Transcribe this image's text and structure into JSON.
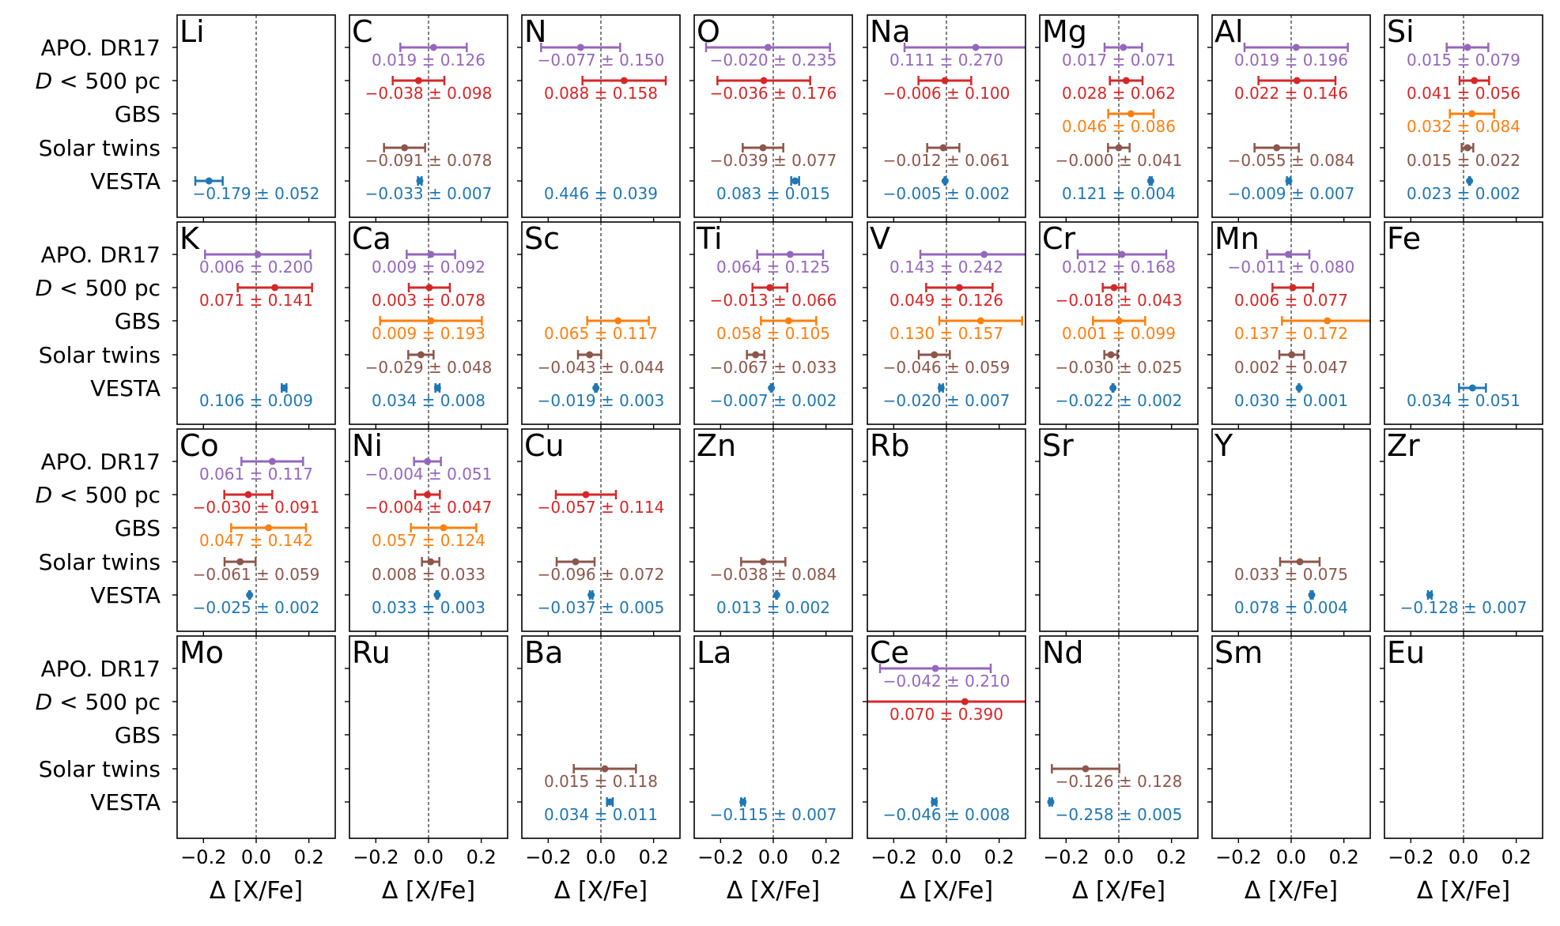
{
  "chart_data": {
    "type": "errorbar",
    "xlabel": "Δ [X/Fe]",
    "xlim": [
      -0.3,
      0.3
    ],
    "xticks": [
      -0.2,
      0.0,
      0.2
    ],
    "xtick_labels": [
      "−0.2",
      "0.0",
      "0.2"
    ],
    "grid": false,
    "zero_reference_line": true,
    "rows": [
      {
        "key": "apo",
        "label": "APO. DR17",
        "color": "#9467bd"
      },
      {
        "key": "d500",
        "label": "D < 500 pc",
        "label_main": "D",
        "label_rest": " < 500 pc",
        "color": "#d62728"
      },
      {
        "key": "gbs",
        "label": "GBS",
        "color": "#ff7f0e"
      },
      {
        "key": "twins",
        "label": "Solar twins",
        "color": "#8c564b"
      },
      {
        "key": "vesta",
        "label": "VESTA",
        "color": "#1f77b4"
      }
    ],
    "panels": [
      {
        "element": "Li",
        "entries": [
          {
            "row": "vesta",
            "value": -0.179,
            "error": 0.052,
            "label": "−0.179 ± 0.052"
          }
        ]
      },
      {
        "element": "C",
        "entries": [
          {
            "row": "apo",
            "value": 0.019,
            "error": 0.126,
            "label": "0.019 ± 0.126"
          },
          {
            "row": "d500",
            "value": -0.038,
            "error": 0.098,
            "label": "−0.038 ± 0.098"
          },
          {
            "row": "twins",
            "value": -0.091,
            "error": 0.078,
            "label": "−0.091 ± 0.078"
          },
          {
            "row": "vesta",
            "value": -0.033,
            "error": 0.007,
            "label": "−0.033 ± 0.007"
          }
        ]
      },
      {
        "element": "N",
        "entries": [
          {
            "row": "apo",
            "value": -0.077,
            "error": 0.15,
            "label": "−0.077 ± 0.150"
          },
          {
            "row": "d500",
            "value": 0.088,
            "error": 0.158,
            "label": "0.088 ± 0.158"
          },
          {
            "row": "vesta",
            "value": 0.446,
            "error": 0.039,
            "label": "0.446 ± 0.039"
          }
        ]
      },
      {
        "element": "O",
        "entries": [
          {
            "row": "apo",
            "value": -0.02,
            "error": 0.235,
            "label": "−0.020 ± 0.235"
          },
          {
            "row": "d500",
            "value": -0.036,
            "error": 0.176,
            "label": "−0.036 ± 0.176"
          },
          {
            "row": "twins",
            "value": -0.039,
            "error": 0.077,
            "label": "−0.039 ± 0.077"
          },
          {
            "row": "vesta",
            "value": 0.083,
            "error": 0.015,
            "label": "0.083 ± 0.015"
          }
        ]
      },
      {
        "element": "Na",
        "entries": [
          {
            "row": "apo",
            "value": 0.111,
            "error": 0.27,
            "label": "0.111 ± 0.270"
          },
          {
            "row": "d500",
            "value": -0.006,
            "error": 0.1,
            "label": "−0.006 ± 0.100"
          },
          {
            "row": "twins",
            "value": -0.012,
            "error": 0.061,
            "label": "−0.012 ± 0.061"
          },
          {
            "row": "vesta",
            "value": -0.005,
            "error": 0.002,
            "label": "−0.005 ± 0.002"
          }
        ]
      },
      {
        "element": "Mg",
        "entries": [
          {
            "row": "apo",
            "value": 0.017,
            "error": 0.071,
            "label": "0.017 ± 0.071"
          },
          {
            "row": "d500",
            "value": 0.028,
            "error": 0.062,
            "label": "0.028 ± 0.062"
          },
          {
            "row": "gbs",
            "value": 0.046,
            "error": 0.086,
            "label": "0.046 ± 0.086"
          },
          {
            "row": "twins",
            "value": -0.0,
            "error": 0.041,
            "label": "−0.000 ± 0.041"
          },
          {
            "row": "vesta",
            "value": 0.121,
            "error": 0.004,
            "label": "0.121 ± 0.004"
          }
        ]
      },
      {
        "element": "Al",
        "entries": [
          {
            "row": "apo",
            "value": 0.019,
            "error": 0.196,
            "label": "0.019 ± 0.196"
          },
          {
            "row": "d500",
            "value": 0.022,
            "error": 0.146,
            "label": "0.022 ± 0.146"
          },
          {
            "row": "twins",
            "value": -0.055,
            "error": 0.084,
            "label": "−0.055 ± 0.084"
          },
          {
            "row": "vesta",
            "value": -0.009,
            "error": 0.007,
            "label": "−0.009 ± 0.007"
          }
        ]
      },
      {
        "element": "Si",
        "entries": [
          {
            "row": "apo",
            "value": 0.015,
            "error": 0.079,
            "label": "0.015 ± 0.079"
          },
          {
            "row": "d500",
            "value": 0.041,
            "error": 0.056,
            "label": "0.041 ± 0.056"
          },
          {
            "row": "gbs",
            "value": 0.032,
            "error": 0.084,
            "label": "0.032 ± 0.084"
          },
          {
            "row": "twins",
            "value": 0.015,
            "error": 0.022,
            "label": "0.015 ± 0.022"
          },
          {
            "row": "vesta",
            "value": 0.023,
            "error": 0.002,
            "label": "0.023 ± 0.002"
          }
        ]
      },
      {
        "element": "K",
        "entries": [
          {
            "row": "apo",
            "value": 0.006,
            "error": 0.2,
            "label": "0.006 ± 0.200"
          },
          {
            "row": "d500",
            "value": 0.071,
            "error": 0.141,
            "label": "0.071 ± 0.141"
          },
          {
            "row": "vesta",
            "value": 0.106,
            "error": 0.009,
            "label": "0.106 ± 0.009"
          }
        ]
      },
      {
        "element": "Ca",
        "entries": [
          {
            "row": "apo",
            "value": 0.009,
            "error": 0.092,
            "label": "0.009 ± 0.092"
          },
          {
            "row": "d500",
            "value": 0.003,
            "error": 0.078,
            "label": "0.003 ± 0.078"
          },
          {
            "row": "gbs",
            "value": 0.009,
            "error": 0.193,
            "label": "0.009 ± 0.193"
          },
          {
            "row": "twins",
            "value": -0.029,
            "error": 0.048,
            "label": "−0.029 ± 0.048"
          },
          {
            "row": "vesta",
            "value": 0.034,
            "error": 0.008,
            "label": "0.034 ± 0.008"
          }
        ]
      },
      {
        "element": "Sc",
        "entries": [
          {
            "row": "gbs",
            "value": 0.065,
            "error": 0.117,
            "label": "0.065 ± 0.117"
          },
          {
            "row": "twins",
            "value": -0.043,
            "error": 0.044,
            "label": "−0.043 ± 0.044"
          },
          {
            "row": "vesta",
            "value": -0.019,
            "error": 0.003,
            "label": "−0.019 ± 0.003"
          }
        ]
      },
      {
        "element": "Ti",
        "entries": [
          {
            "row": "apo",
            "value": 0.064,
            "error": 0.125,
            "label": "0.064 ± 0.125"
          },
          {
            "row": "d500",
            "value": -0.013,
            "error": 0.066,
            "label": "−0.013 ± 0.066"
          },
          {
            "row": "gbs",
            "value": 0.058,
            "error": 0.105,
            "label": "0.058 ± 0.105"
          },
          {
            "row": "twins",
            "value": -0.067,
            "error": 0.033,
            "label": "−0.067 ± 0.033"
          },
          {
            "row": "vesta",
            "value": -0.007,
            "error": 0.002,
            "label": "−0.007 ± 0.002"
          }
        ]
      },
      {
        "element": "V",
        "entries": [
          {
            "row": "apo",
            "value": 0.143,
            "error": 0.242,
            "label": "0.143 ± 0.242"
          },
          {
            "row": "d500",
            "value": 0.049,
            "error": 0.126,
            "label": "0.049 ± 0.126"
          },
          {
            "row": "gbs",
            "value": 0.13,
            "error": 0.157,
            "label": "0.130 ± 0.157"
          },
          {
            "row": "twins",
            "value": -0.046,
            "error": 0.059,
            "label": "−0.046 ± 0.059"
          },
          {
            "row": "vesta",
            "value": -0.02,
            "error": 0.007,
            "label": "−0.020 ± 0.007"
          }
        ]
      },
      {
        "element": "Cr",
        "entries": [
          {
            "row": "apo",
            "value": 0.012,
            "error": 0.168,
            "label": "0.012 ± 0.168"
          },
          {
            "row": "d500",
            "value": -0.018,
            "error": 0.043,
            "label": "−0.018 ± 0.043"
          },
          {
            "row": "gbs",
            "value": 0.001,
            "error": 0.099,
            "label": "0.001 ± 0.099"
          },
          {
            "row": "twins",
            "value": -0.03,
            "error": 0.025,
            "label": "−0.030 ± 0.025"
          },
          {
            "row": "vesta",
            "value": -0.022,
            "error": 0.002,
            "label": "−0.022 ± 0.002"
          }
        ]
      },
      {
        "element": "Mn",
        "entries": [
          {
            "row": "apo",
            "value": -0.011,
            "error": 0.08,
            "label": "−0.011 ± 0.080"
          },
          {
            "row": "d500",
            "value": 0.006,
            "error": 0.077,
            "label": "0.006 ± 0.077"
          },
          {
            "row": "gbs",
            "value": 0.137,
            "error": 0.172,
            "label": "0.137 ± 0.172"
          },
          {
            "row": "twins",
            "value": 0.002,
            "error": 0.047,
            "label": "0.002 ± 0.047"
          },
          {
            "row": "vesta",
            "value": 0.03,
            "error": 0.001,
            "label": "0.030 ± 0.001"
          }
        ]
      },
      {
        "element": "Fe",
        "entries": [
          {
            "row": "vesta",
            "value": 0.034,
            "error": 0.051,
            "label": "0.034 ± 0.051"
          }
        ]
      },
      {
        "element": "Co",
        "entries": [
          {
            "row": "apo",
            "value": 0.061,
            "error": 0.117,
            "label": "0.061 ± 0.117"
          },
          {
            "row": "d500",
            "value": -0.03,
            "error": 0.091,
            "label": "−0.030 ± 0.091"
          },
          {
            "row": "gbs",
            "value": 0.047,
            "error": 0.142,
            "label": "0.047 ± 0.142"
          },
          {
            "row": "twins",
            "value": -0.061,
            "error": 0.059,
            "label": "−0.061 ± 0.059"
          },
          {
            "row": "vesta",
            "value": -0.025,
            "error": 0.002,
            "label": "−0.025 ± 0.002"
          }
        ]
      },
      {
        "element": "Ni",
        "entries": [
          {
            "row": "apo",
            "value": -0.004,
            "error": 0.051,
            "label": "−0.004 ± 0.051"
          },
          {
            "row": "d500",
            "value": -0.004,
            "error": 0.047,
            "label": "−0.004 ± 0.047"
          },
          {
            "row": "gbs",
            "value": 0.057,
            "error": 0.124,
            "label": "0.057 ± 0.124"
          },
          {
            "row": "twins",
            "value": 0.008,
            "error": 0.033,
            "label": "0.008 ± 0.033"
          },
          {
            "row": "vesta",
            "value": 0.033,
            "error": 0.003,
            "label": "0.033 ± 0.003"
          }
        ]
      },
      {
        "element": "Cu",
        "entries": [
          {
            "row": "d500",
            "value": -0.057,
            "error": 0.114,
            "label": "−0.057 ± 0.114"
          },
          {
            "row": "twins",
            "value": -0.096,
            "error": 0.072,
            "label": "−0.096 ± 0.072"
          },
          {
            "row": "vesta",
            "value": -0.037,
            "error": 0.005,
            "label": "−0.037 ± 0.005"
          }
        ]
      },
      {
        "element": "Zn",
        "entries": [
          {
            "row": "twins",
            "value": -0.038,
            "error": 0.084,
            "label": "−0.038 ± 0.084"
          },
          {
            "row": "vesta",
            "value": 0.013,
            "error": 0.002,
            "label": "0.013 ± 0.002"
          }
        ]
      },
      {
        "element": "Rb",
        "entries": []
      },
      {
        "element": "Sr",
        "entries": []
      },
      {
        "element": "Y",
        "entries": [
          {
            "row": "twins",
            "value": 0.033,
            "error": 0.075,
            "label": "0.033 ± 0.075"
          },
          {
            "row": "vesta",
            "value": 0.078,
            "error": 0.004,
            "label": "0.078 ± 0.004"
          }
        ]
      },
      {
        "element": "Zr",
        "entries": [
          {
            "row": "vesta",
            "value": -0.128,
            "error": 0.007,
            "label": "−0.128 ± 0.007"
          }
        ]
      },
      {
        "element": "Mo",
        "entries": []
      },
      {
        "element": "Ru",
        "entries": []
      },
      {
        "element": "Ba",
        "entries": [
          {
            "row": "twins",
            "value": 0.015,
            "error": 0.118,
            "label": "0.015 ± 0.118"
          },
          {
            "row": "vesta",
            "value": 0.034,
            "error": 0.011,
            "label": "0.034 ± 0.011"
          }
        ]
      },
      {
        "element": "La",
        "entries": [
          {
            "row": "vesta",
            "value": -0.115,
            "error": 0.007,
            "label": "−0.115 ± 0.007"
          }
        ]
      },
      {
        "element": "Ce",
        "entries": [
          {
            "row": "apo",
            "value": -0.042,
            "error": 0.21,
            "label": "−0.042 ± 0.210"
          },
          {
            "row": "d500",
            "value": 0.07,
            "error": 0.39,
            "label": "0.070 ± 0.390"
          },
          {
            "row": "vesta",
            "value": -0.046,
            "error": 0.008,
            "label": "−0.046 ± 0.008"
          }
        ]
      },
      {
        "element": "Nd",
        "entries": [
          {
            "row": "twins",
            "value": -0.126,
            "error": 0.128,
            "label": "−0.126 ± 0.128"
          },
          {
            "row": "vesta",
            "value": -0.258,
            "error": 0.005,
            "label": "−0.258 ± 0.005"
          }
        ]
      },
      {
        "element": "Sm",
        "entries": []
      },
      {
        "element": "Eu",
        "entries": []
      }
    ]
  }
}
